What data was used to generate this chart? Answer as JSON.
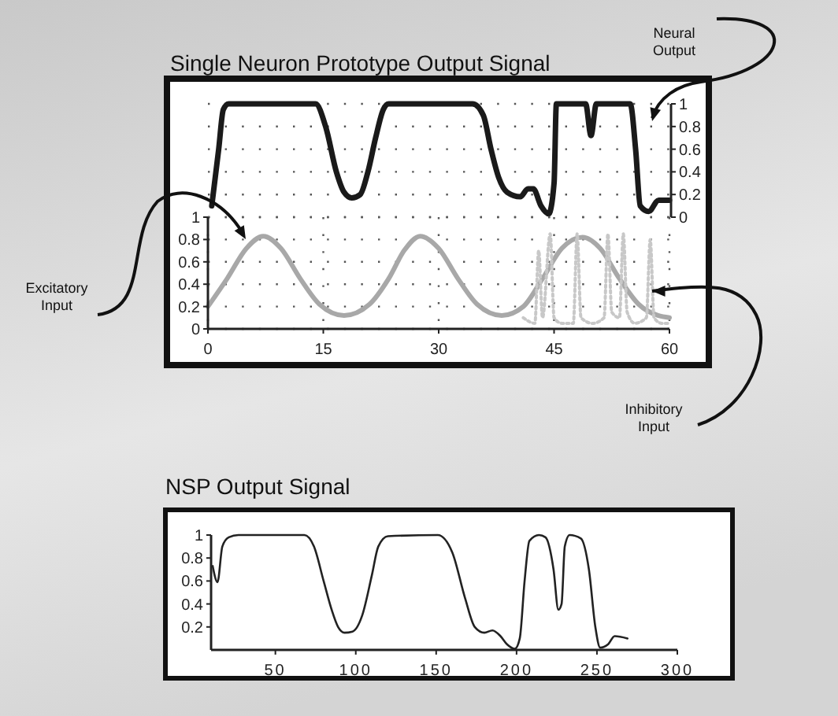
{
  "chart_data": [
    {
      "type": "line",
      "title": "Single Neuron Prototype Output Signal",
      "xlim": [
        0,
        60
      ],
      "ylim": [
        0,
        1
      ],
      "yticks": [
        0,
        0.2,
        0.4,
        0.6,
        0.8,
        1
      ],
      "tick_labels": "y",
      "grid": true,
      "series": [
        {
          "name": "Neural Output",
          "color": "#1a1a1a",
          "x": [
            0.5,
            1.4,
            2,
            2.7,
            14,
            15.3,
            16.7,
            17.7,
            18.7,
            19.8,
            20.8,
            21.8,
            22.8,
            23.5,
            34.4,
            35.8,
            36.8,
            37.8,
            38.9,
            40.6,
            41.6,
            42.3,
            43.3,
            44.3,
            45,
            45.3,
            49.1,
            49.8,
            50.5,
            54.9,
            55.6,
            56.2,
            57.3,
            58.6,
            60
          ],
          "values": [
            0.1,
            0.6,
            0.95,
            1,
            1,
            0.8,
            0.4,
            0.22,
            0.17,
            0.2,
            0.4,
            0.7,
            0.95,
            1,
            1,
            0.9,
            0.6,
            0.35,
            0.22,
            0.18,
            0.25,
            0.25,
            0.1,
            0.03,
            0.3,
            1,
            1,
            0.72,
            1,
            1,
            0.6,
            0.1,
            0.05,
            0.15,
            0.15
          ]
        }
      ]
    },
    {
      "type": "line",
      "xlim": [
        0,
        60
      ],
      "xticks": [
        0,
        15,
        30,
        45,
        60
      ],
      "ylim": [
        0,
        1
      ],
      "yticks": [
        0,
        0.2,
        0.4,
        0.6,
        0.8,
        1
      ],
      "grid": true,
      "series": [
        {
          "name": "Excitatory Input",
          "color": "#a8a8a8",
          "x": [
            0,
            2.5,
            5,
            7.2,
            9.5,
            12,
            14.5,
            17.7,
            21,
            23.5,
            25.5,
            27.6,
            30,
            32.5,
            35,
            38.2,
            41,
            43.5,
            46,
            48.7,
            51,
            53.5,
            56,
            58.5,
            60
          ],
          "values": [
            0.2,
            0.45,
            0.72,
            0.83,
            0.72,
            0.45,
            0.22,
            0.12,
            0.22,
            0.45,
            0.7,
            0.83,
            0.72,
            0.45,
            0.22,
            0.12,
            0.2,
            0.45,
            0.72,
            0.82,
            0.72,
            0.45,
            0.22,
            0.12,
            0.1
          ]
        },
        {
          "name": "Inhibitory Input",
          "color": "#c8c8c8",
          "line_style": "dotted",
          "x": [
            41,
            42.5,
            43,
            43.5,
            44.5,
            45,
            46,
            47.5,
            48,
            48.5,
            50,
            51.5,
            52,
            52.5,
            53.5,
            54,
            54.5,
            55.5,
            57,
            57.5,
            58,
            59,
            60
          ],
          "values": [
            0.1,
            0.05,
            0.7,
            0.1,
            0.85,
            0.1,
            0.05,
            0.05,
            0.85,
            0.1,
            0.05,
            0.1,
            0.85,
            0.15,
            0.1,
            0.85,
            0.15,
            0.05,
            0.1,
            0.8,
            0.1,
            0.05,
            0.05
          ]
        }
      ]
    },
    {
      "type": "line",
      "title": "NSP Output Signal",
      "xlim": [
        10,
        300
      ],
      "xticks": [
        50,
        100,
        150,
        200,
        250,
        300
      ],
      "ylim": [
        0,
        1
      ],
      "yticks": [
        {
          "value": 0.2,
          "label": "0.2"
        },
        {
          "value": 0.4,
          "label": "0.4"
        },
        {
          "value": 0.6,
          "label": "0.6"
        },
        {
          "value": 0.8,
          "label": "0.8"
        },
        1
      ],
      "series": [
        {
          "color": "#222222",
          "x": [
            11,
            14,
            17,
            21,
            27,
            68,
            74,
            80,
            85,
            89,
            93,
            98,
            104,
            110,
            114,
            120,
            151,
            160,
            168,
            174,
            180,
            185,
            190,
            194,
            199,
            202,
            205,
            208,
            214,
            218,
            223,
            226,
            228,
            230,
            233,
            240,
            245,
            249,
            252,
            257,
            261,
            269
          ],
          "values": [
            0.73,
            0.59,
            0.9,
            0.98,
            1,
            1,
            0.9,
            0.6,
            0.35,
            0.2,
            0.15,
            0.16,
            0.3,
            0.65,
            0.9,
            0.99,
            1,
            0.85,
            0.45,
            0.2,
            0.15,
            0.17,
            0.12,
            0.05,
            0.01,
            0.1,
            0.6,
            0.95,
            1,
            0.98,
            0.7,
            0.35,
            0.4,
            0.9,
            1,
            0.97,
            0.7,
            0.2,
            0.02,
            0.05,
            0.12,
            0.1
          ]
        }
      ]
    }
  ]
}
